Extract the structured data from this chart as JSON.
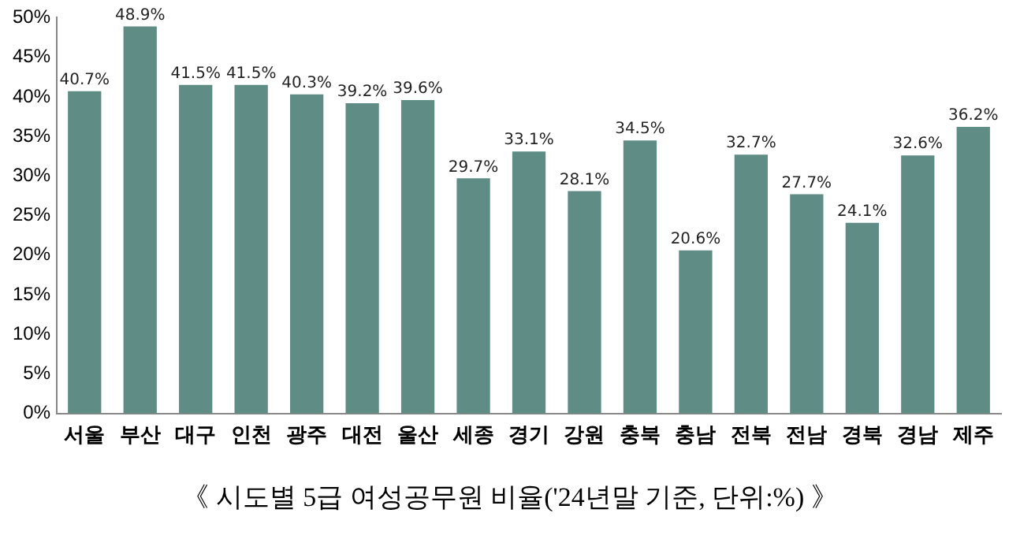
{
  "chart_data": {
    "type": "bar",
    "title": "《 시도별 5급 여성공무원 비율('24년말 기준, 단위:%) 》",
    "categories": [
      "서울",
      "부산",
      "대구",
      "인천",
      "광주",
      "대전",
      "울산",
      "세종",
      "경기",
      "강원",
      "충북",
      "충남",
      "전북",
      "전남",
      "경북",
      "경남",
      "제주"
    ],
    "values": [
      40.7,
      48.9,
      41.5,
      41.5,
      40.3,
      39.2,
      39.6,
      29.7,
      33.1,
      28.1,
      34.5,
      20.6,
      32.7,
      27.7,
      24.1,
      32.6,
      36.2
    ],
    "value_labels": [
      "40.7%",
      "48.9%",
      "41.5%",
      "41.5%",
      "40.3%",
      "39.2%",
      "39.6%",
      "29.7%",
      "33.1%",
      "28.1%",
      "34.5%",
      "20.6%",
      "32.7%",
      "27.7%",
      "24.1%",
      "32.6%",
      "36.2%"
    ],
    "color": "#5f8c85",
    "ylim": [
      0,
      50
    ],
    "yticks": [
      {
        "value": 0,
        "label": "0%"
      },
      {
        "value": 5,
        "label": "5%"
      },
      {
        "value": 10,
        "label": "10%"
      },
      {
        "value": 15,
        "label": "15%"
      },
      {
        "value": 20,
        "label": "20%"
      },
      {
        "value": 25,
        "label": "25%"
      },
      {
        "value": 30,
        "label": "30%"
      },
      {
        "value": 35,
        "label": "35%"
      },
      {
        "value": 40,
        "label": "40%"
      },
      {
        "value": 45,
        "label": "45%"
      },
      {
        "value": 50,
        "label": "50%"
      }
    ],
    "grid": false,
    "legend": false
  }
}
